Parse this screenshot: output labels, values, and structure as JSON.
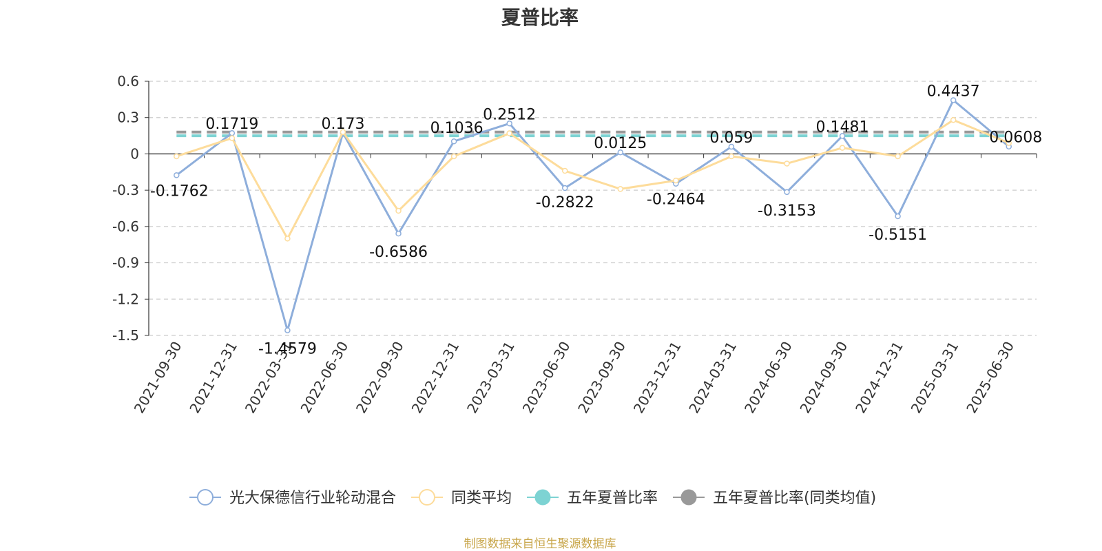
{
  "title": "夏普比率",
  "footer": "制图数据来自恒生聚源数据库",
  "chart_data": {
    "type": "line",
    "title": "夏普比率",
    "categories": [
      "2021-09-30",
      "2021-12-31",
      "2022-03-31",
      "2022-06-30",
      "2022-09-30",
      "2022-12-31",
      "2023-03-31",
      "2023-06-30",
      "2023-09-30",
      "2023-12-31",
      "2024-03-31",
      "2024-06-30",
      "2024-09-30",
      "2024-12-31",
      "2025-03-31",
      "2025-06-30"
    ],
    "ylim": [
      -1.5,
      0.6
    ],
    "yticks": [
      "0.6",
      "0.3",
      "0",
      "-0.3",
      "-0.6",
      "-0.9",
      "-1.2",
      "-1.5"
    ],
    "grid": true,
    "legend_position": "bottom",
    "series": [
      {
        "name": "光大保德信行业轮动混合",
        "color": "#8eaedb",
        "values": [
          -0.1762,
          0.1719,
          -1.4579,
          0.173,
          -0.6586,
          0.1036,
          0.2512,
          -0.2822,
          0.0125,
          -0.2464,
          0.059,
          -0.3153,
          0.1481,
          -0.5151,
          0.4437,
          0.0608
        ],
        "labels": [
          "-0.1762",
          "0.1719",
          "-1.4579",
          "0.173",
          "-0.6586",
          "0.1036",
          "0.2512",
          "-0.2822",
          "0.0125",
          "-0.2464",
          "0.059",
          "-0.3153",
          "0.1481",
          "-0.5151",
          "0.4437",
          "0.0608"
        ]
      },
      {
        "name": "同类平均",
        "color": "#fddc9b",
        "values": [
          -0.02,
          0.13,
          -0.7,
          0.18,
          -0.47,
          -0.02,
          0.17,
          -0.14,
          -0.29,
          -0.22,
          -0.02,
          -0.08,
          0.05,
          -0.02,
          0.28,
          0.09
        ]
      },
      {
        "name": "五年夏普比率",
        "color": "#7dd3d3",
        "type": "reference",
        "value": 0.15
      },
      {
        "name": "五年夏普比率(同类均值)",
        "color": "#999999",
        "type": "reference",
        "value": 0.18
      }
    ]
  }
}
